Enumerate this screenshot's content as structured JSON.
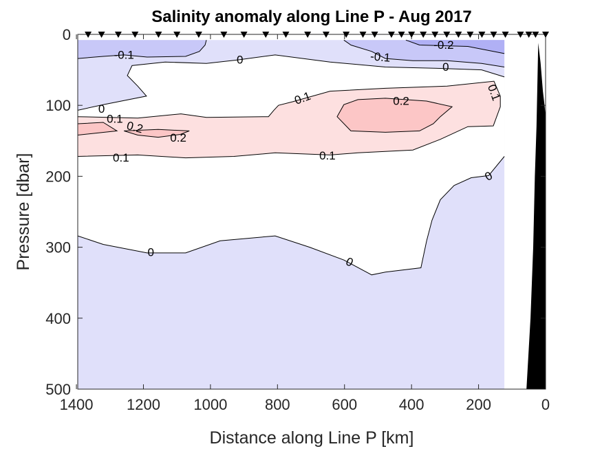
{
  "chart_data": {
    "type": "contour",
    "title": "Salinity anomaly along Line P - Aug 2017",
    "xlabel": "Distance along Line P [km]",
    "ylabel": "Pressure [dbar]",
    "xlim": [
      0,
      1400
    ],
    "x_reversed": true,
    "ylim": [
      0,
      500
    ],
    "y_reversed": true,
    "xticks": [
      1400,
      1200,
      1000,
      800,
      600,
      400,
      200,
      0
    ],
    "yticks": [
      0,
      100,
      200,
      300,
      400,
      500
    ],
    "grid": false,
    "colors": {
      "neg_0_1_to_0": "#e0e0fa",
      "neg_0_2_to_neg_0_1": "#c8c8f8",
      "below_neg_0_2": "#b0b0f5",
      "zero_to_0_1": "#ffffff",
      "pos_0_1_to_0_2": "#fde0e0",
      "above_0_2": "#fcc6c6",
      "bathymetry": "#000000",
      "contour_line": "#000000"
    },
    "data_extent": {
      "x": [
        123,
        1396
      ],
      "y": [
        8,
        500
      ],
      "base_level_range": [
        -0.1,
        0
      ]
    },
    "fills": [
      {
        "range": [
          0,
          0.1
        ],
        "color_key": "zero_to_0_1",
        "points": [
          [
            1396,
            107
          ],
          [
            1320,
            99
          ],
          [
            1191,
            87
          ],
          [
            1217,
            73
          ],
          [
            1248,
            58
          ],
          [
            1234,
            44
          ],
          [
            1135,
            39
          ],
          [
            1012,
            41
          ],
          [
            920,
            36
          ],
          [
            807,
            29
          ],
          [
            643,
            39
          ],
          [
            478,
            46
          ],
          [
            314,
            48
          ],
          [
            191,
            50
          ],
          [
            123,
            60
          ],
          [
            123,
            172
          ],
          [
            170,
            199
          ],
          [
            222,
            202
          ],
          [
            273,
            213
          ],
          [
            314,
            233
          ],
          [
            339,
            262
          ],
          [
            355,
            291
          ],
          [
            372,
            329
          ],
          [
            478,
            335
          ],
          [
            519,
            339
          ],
          [
            602,
            318
          ],
          [
            704,
            300
          ],
          [
            807,
            284
          ],
          [
            971,
            291
          ],
          [
            1074,
            308
          ],
          [
            1189,
            308
          ],
          [
            1320,
            296
          ],
          [
            1396,
            284
          ]
        ]
      },
      {
        "range": [
          0.1,
          0.2
        ],
        "color_key": "pos_0_1_to_0_2",
        "points": [
          [
            1396,
            116
          ],
          [
            1217,
            118
          ],
          [
            1088,
            112
          ],
          [
            1012,
            117
          ],
          [
            827,
            116
          ],
          [
            811,
            107
          ],
          [
            797,
            100
          ],
          [
            755,
            95
          ],
          [
            643,
            80
          ],
          [
            478,
            76
          ],
          [
            294,
            73
          ],
          [
            154,
            66
          ],
          [
            135,
            87
          ],
          [
            135,
            102
          ],
          [
            156,
            129
          ],
          [
            232,
            130
          ],
          [
            314,
            148
          ],
          [
            396,
            163
          ],
          [
            560,
            167
          ],
          [
            643,
            170
          ],
          [
            807,
            167
          ],
          [
            930,
            172
          ],
          [
            1074,
            174
          ],
          [
            1217,
            170
          ],
          [
            1396,
            172
          ]
        ]
      },
      {
        "range": [
          0.2,
          0.3
        ],
        "color_key": "above_0_2",
        "points": [
          [
            622,
            116
          ],
          [
            602,
            99
          ],
          [
            560,
            92
          ],
          [
            478,
            90
          ],
          [
            355,
            94
          ],
          [
            279,
            102
          ],
          [
            314,
            116
          ],
          [
            335,
            126
          ],
          [
            376,
            136
          ],
          [
            478,
            138
          ],
          [
            581,
            136
          ]
        ]
      },
      {
        "range": [
          0.2,
          0.3
        ],
        "color_key": "above_0_2",
        "points": [
          [
            1258,
            136
          ],
          [
            1156,
            134
          ],
          [
            1063,
            136
          ],
          [
            1090,
            141
          ],
          [
            1156,
            145
          ],
          [
            1217,
            142
          ]
        ]
      },
      {
        "range": [
          0.2,
          0.3
        ],
        "color_key": "above_0_2",
        "points": [
          [
            1396,
            126
          ],
          [
            1320,
            124
          ],
          [
            1279,
            136
          ],
          [
            1396,
            142
          ]
        ]
      },
      {
        "range": [
          -0.2,
          -0.1
        ],
        "color_key": "neg_0_2_to_neg_0_1",
        "points": [
          [
            1396,
            8
          ],
          [
            1012,
            8
          ],
          [
            1016,
            15
          ],
          [
            1033,
            24
          ],
          [
            1074,
            31
          ],
          [
            1189,
            32
          ],
          [
            1258,
            29
          ],
          [
            1320,
            31
          ],
          [
            1396,
            34
          ]
        ]
      },
      {
        "range": [
          -0.2,
          -0.1
        ],
        "color_key": "neg_0_2_to_neg_0_1",
        "points": [
          [
            602,
            8
          ],
          [
            581,
            15
          ],
          [
            519,
            24
          ],
          [
            478,
            34
          ],
          [
            396,
            37
          ],
          [
            294,
            37
          ],
          [
            191,
            41
          ],
          [
            123,
            46
          ],
          [
            123,
            8
          ]
        ]
      },
      {
        "range": [
          -0.3,
          -0.2
        ],
        "color_key": "below_neg_0_2",
        "points": [
          [
            417,
            8
          ],
          [
            376,
            15
          ],
          [
            232,
            17
          ],
          [
            123,
            27
          ],
          [
            123,
            8
          ]
        ]
      }
    ],
    "contours": [
      {
        "level": 0,
        "closed": false,
        "points": [
          [
            1396,
            107
          ],
          [
            1320,
            99
          ],
          [
            1191,
            87
          ],
          [
            1217,
            73
          ],
          [
            1248,
            58
          ],
          [
            1234,
            44
          ],
          [
            1135,
            39
          ],
          [
            1012,
            41
          ],
          [
            920,
            36
          ],
          [
            807,
            29
          ],
          [
            643,
            39
          ],
          [
            478,
            46
          ],
          [
            314,
            48
          ],
          [
            191,
            50
          ],
          [
            123,
            60
          ]
        ]
      },
      {
        "level": 0,
        "closed": false,
        "points": [
          [
            1396,
            284
          ],
          [
            1320,
            296
          ],
          [
            1189,
            308
          ],
          [
            1074,
            308
          ],
          [
            971,
            291
          ],
          [
            807,
            284
          ],
          [
            704,
            300
          ],
          [
            602,
            318
          ],
          [
            519,
            339
          ],
          [
            478,
            335
          ],
          [
            372,
            329
          ],
          [
            355,
            291
          ],
          [
            339,
            262
          ],
          [
            314,
            233
          ],
          [
            273,
            213
          ],
          [
            222,
            202
          ],
          [
            170,
            199
          ],
          [
            123,
            172
          ]
        ]
      },
      {
        "level": 0.1,
        "closed": false,
        "points": [
          [
            1396,
            116
          ],
          [
            1217,
            118
          ],
          [
            1088,
            112
          ],
          [
            1012,
            117
          ],
          [
            827,
            116
          ],
          [
            811,
            107
          ],
          [
            797,
            100
          ],
          [
            755,
            95
          ],
          [
            643,
            80
          ],
          [
            478,
            76
          ],
          [
            294,
            73
          ],
          [
            154,
            66
          ],
          [
            135,
            87
          ],
          [
            135,
            102
          ],
          [
            156,
            129
          ],
          [
            232,
            130
          ],
          [
            314,
            148
          ],
          [
            396,
            163
          ],
          [
            560,
            167
          ],
          [
            643,
            170
          ],
          [
            807,
            167
          ],
          [
            930,
            172
          ],
          [
            1074,
            174
          ],
          [
            1217,
            170
          ],
          [
            1396,
            172
          ]
        ]
      },
      {
        "level": 0.2,
        "closed": true,
        "points": [
          [
            622,
            116
          ],
          [
            602,
            99
          ],
          [
            560,
            92
          ],
          [
            478,
            90
          ],
          [
            355,
            94
          ],
          [
            279,
            102
          ],
          [
            314,
            116
          ],
          [
            335,
            126
          ],
          [
            376,
            136
          ],
          [
            478,
            138
          ],
          [
            581,
            136
          ]
        ]
      },
      {
        "level": 0.2,
        "closed": true,
        "points": [
          [
            1258,
            136
          ],
          [
            1156,
            134
          ],
          [
            1063,
            136
          ],
          [
            1090,
            141
          ],
          [
            1156,
            145
          ],
          [
            1217,
            142
          ]
        ]
      },
      {
        "level": 0.2,
        "closed": false,
        "points": [
          [
            1396,
            126
          ],
          [
            1320,
            124
          ],
          [
            1279,
            136
          ],
          [
            1396,
            142
          ]
        ]
      },
      {
        "level": -0.1,
        "closed": false,
        "points": [
          [
            1012,
            8
          ],
          [
            1016,
            15
          ],
          [
            1033,
            24
          ],
          [
            1074,
            31
          ],
          [
            1189,
            32
          ],
          [
            1258,
            29
          ],
          [
            1320,
            31
          ],
          [
            1396,
            34
          ]
        ]
      },
      {
        "level": -0.1,
        "closed": false,
        "points": [
          [
            602,
            8
          ],
          [
            581,
            15
          ],
          [
            519,
            24
          ],
          [
            478,
            34
          ],
          [
            396,
            37
          ],
          [
            294,
            37
          ],
          [
            191,
            41
          ],
          [
            123,
            46
          ]
        ]
      },
      {
        "level": -0.2,
        "closed": false,
        "points": [
          [
            417,
            8
          ],
          [
            376,
            15
          ],
          [
            232,
            17
          ],
          [
            123,
            27
          ]
        ]
      }
    ],
    "contour_labels": [
      {
        "text": "-0.1",
        "x": 1258,
        "y": 29,
        "angle": 0
      },
      {
        "text": "0",
        "x": 912,
        "y": 36,
        "angle": 0
      },
      {
        "text": "-0.1",
        "x": 493,
        "y": 32,
        "angle": 5
      },
      {
        "text": "-0.2",
        "x": 304,
        "y": 15,
        "angle": 0
      },
      {
        "text": "0",
        "x": 298,
        "y": 46,
        "angle": 0
      },
      {
        "text": "0.1",
        "x": 725,
        "y": 90,
        "angle": -20
      },
      {
        "text": "0.2",
        "x": 431,
        "y": 94,
        "angle": 0
      },
      {
        "text": "0.1",
        "x": 154,
        "y": 82,
        "angle": 70
      },
      {
        "text": "0",
        "x": 1325,
        "y": 105,
        "angle": 0
      },
      {
        "text": "0.1",
        "x": 1310,
        "y": 119,
        "angle": 0
      },
      {
        "text": "0.2",
        "x": 1316,
        "y": 131,
        "angle": 15
      },
      {
        "text": "0.2",
        "x": 1096,
        "y": 146,
        "angle": 0
      },
      {
        "text": "0.1",
        "x": 1267,
        "y": 174,
        "angle": 0
      },
      {
        "text": "0.1",
        "x": 651,
        "y": 171,
        "angle": 0
      },
      {
        "text": "0",
        "x": 170,
        "y": 200,
        "angle": -30
      },
      {
        "text": "0",
        "x": 1178,
        "y": 307,
        "angle": 0
      },
      {
        "text": "0",
        "x": 585,
        "y": 321,
        "angle": 25
      }
    ],
    "stations_km": [
      1365,
      1325,
      1275,
      1225,
      1155,
      1100,
      1035,
      960,
      900,
      835,
      775,
      710,
      655,
      595,
      545,
      510,
      460,
      430,
      400,
      365,
      330,
      295,
      260,
      225,
      190,
      155,
      120,
      75,
      50,
      30,
      0
    ],
    "bathymetry": [
      [
        57,
        500
      ],
      [
        45,
        400
      ],
      [
        37,
        300
      ],
      [
        32,
        200
      ],
      [
        27,
        130
      ],
      [
        24,
        60
      ],
      [
        22,
        12
      ],
      [
        15,
        40
      ],
      [
        8,
        80
      ],
      [
        3,
        100
      ],
      [
        0,
        115
      ],
      [
        0,
        500
      ]
    ]
  }
}
